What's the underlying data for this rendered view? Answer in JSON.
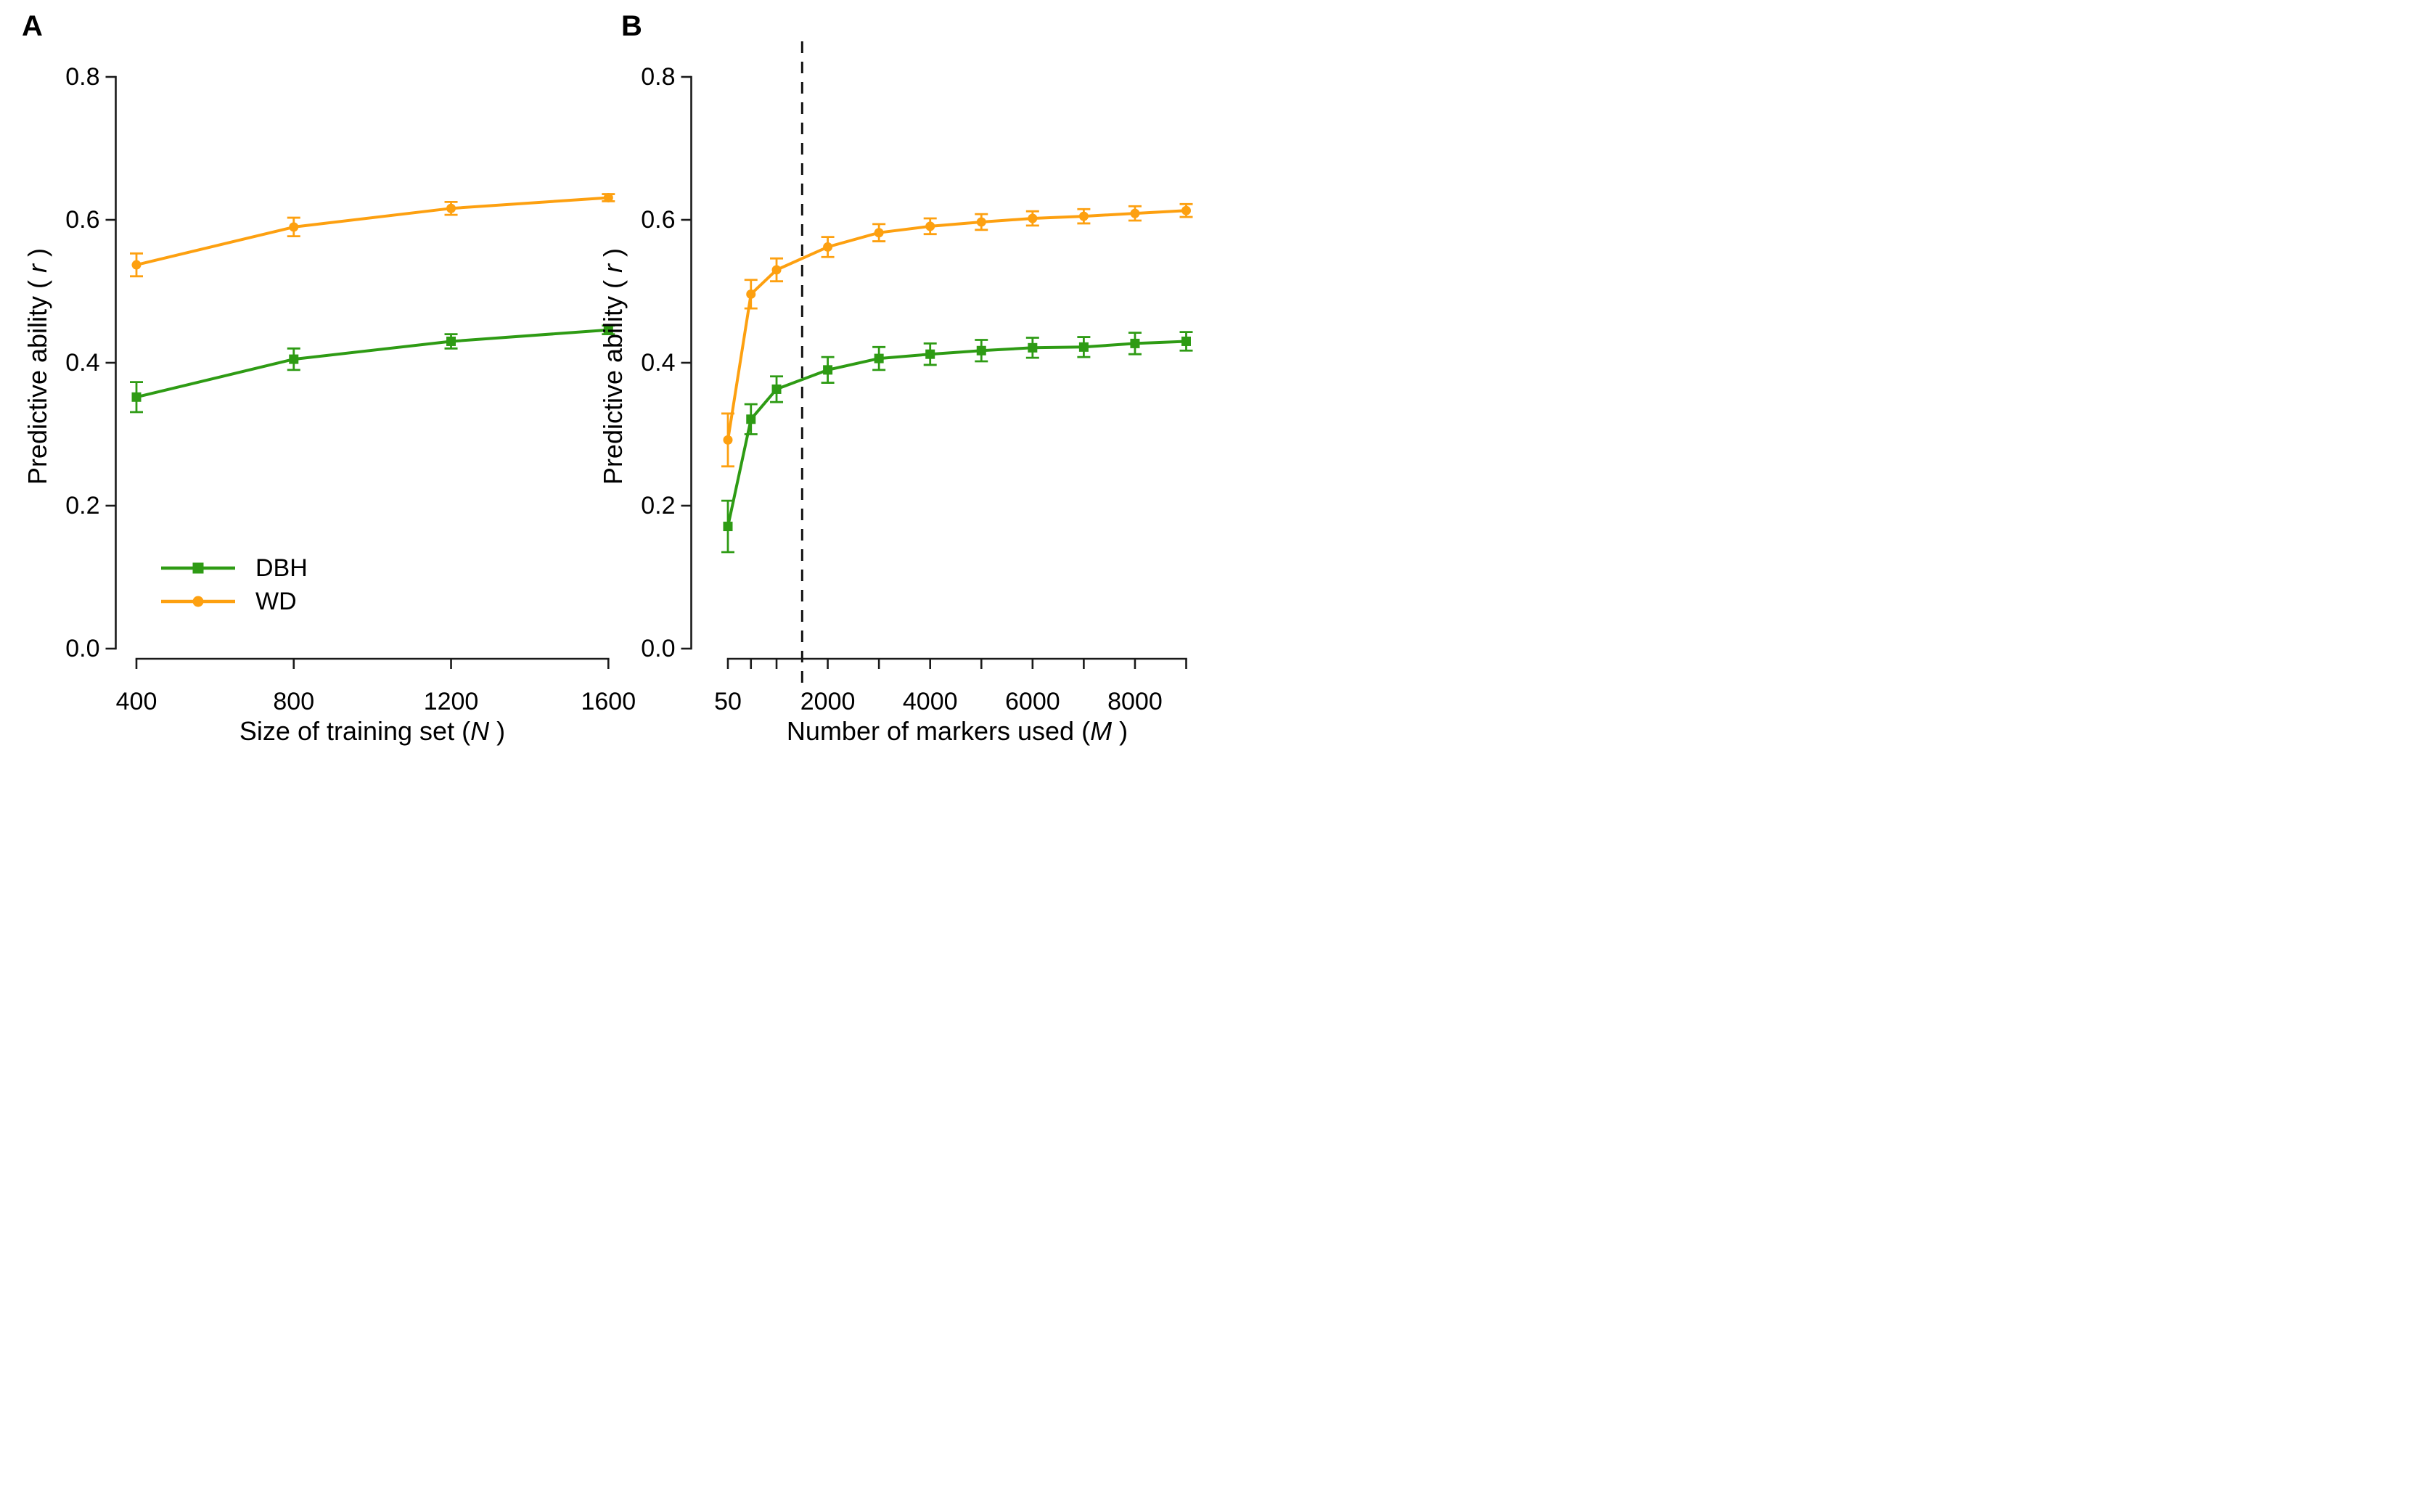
{
  "figure": {
    "background": "#ffffff",
    "text_color": "#000000",
    "axis_color": "#1a1a1a"
  },
  "chart_data": [
    {
      "type": "line",
      "panel_label": "A",
      "title": "",
      "xlabel": "Size of training set (N)",
      "xlabel_parts": {
        "prefix": "Size of training set (",
        "italic": "N",
        "suffix": " )"
      },
      "ylabel": "Predictive ability (r)",
      "ylabel_parts": {
        "prefix": "Predictive ability ( ",
        "italic": "r",
        "suffix": " )"
      },
      "xlim": [
        400,
        1600
      ],
      "ylim": [
        0.0,
        0.8
      ],
      "grid": false,
      "x_ticks": [
        400,
        800,
        1200,
        1600
      ],
      "x_tick_labels": [
        "400",
        "800",
        "1200",
        "1600"
      ],
      "y_ticks": [
        0.0,
        0.2,
        0.4,
        0.6,
        0.8
      ],
      "y_tick_labels": [
        "0.0",
        "0.2",
        "0.4",
        "0.6",
        "0.8"
      ],
      "legend_position": "lower-left-inside",
      "legend": {
        "items": [
          {
            "label": "DBH"
          },
          {
            "label": "WD"
          }
        ]
      },
      "series": [
        {
          "name": "DBH",
          "color": "#2e9b14",
          "marker": "square",
          "x": [
            400,
            800,
            1200,
            1600
          ],
          "y": [
            0.352,
            0.405,
            0.43,
            0.446
          ],
          "yerr": [
            0.021,
            0.015,
            0.01,
            0.006
          ]
        },
        {
          "name": "WD",
          "color": "#fda010",
          "marker": "circle",
          "x": [
            400,
            800,
            1200,
            1600
          ],
          "y": [
            0.537,
            0.59,
            0.616,
            0.631
          ],
          "yerr": [
            0.016,
            0.013,
            0.009,
            0.005
          ]
        }
      ]
    },
    {
      "type": "line",
      "panel_label": "B",
      "title": "",
      "xlabel": "Number of markers used (M)",
      "xlabel_parts": {
        "prefix": "Number of markers used (",
        "italic": "M",
        "suffix": " )"
      },
      "ylabel": "Predictive ability (r)",
      "ylabel_parts": {
        "prefix": "Predictive ability ( ",
        "italic": "r",
        "suffix": " )"
      },
      "xlim": [
        50,
        9000
      ],
      "ylim": [
        0.0,
        0.8
      ],
      "grid": false,
      "x_ticks": [
        50,
        500,
        1000,
        2000,
        3000,
        4000,
        5000,
        6000,
        7000,
        8000,
        9000
      ],
      "x_tick_labels": [
        "50",
        "",
        "",
        "2000",
        "",
        "4000",
        "",
        "6000",
        "",
        "8000",
        ""
      ],
      "y_ticks": [
        0.0,
        0.2,
        0.4,
        0.6,
        0.8
      ],
      "y_tick_labels": [
        "0.0",
        "0.2",
        "0.4",
        "0.6",
        "0.8"
      ],
      "vline": {
        "x": 1500,
        "style": "dashed",
        "color": "#111111"
      },
      "series": [
        {
          "name": "DBH",
          "color": "#2e9b14",
          "marker": "square",
          "x": [
            50,
            500,
            1000,
            2000,
            3000,
            4000,
            5000,
            6000,
            7000,
            8000,
            9000
          ],
          "y": [
            0.171,
            0.321,
            0.363,
            0.39,
            0.406,
            0.412,
            0.417,
            0.421,
            0.422,
            0.427,
            0.43
          ],
          "yerr": [
            0.036,
            0.021,
            0.018,
            0.018,
            0.016,
            0.015,
            0.015,
            0.014,
            0.014,
            0.015,
            0.013
          ]
        },
        {
          "name": "WD",
          "color": "#fda010",
          "marker": "circle",
          "x": [
            50,
            500,
            1000,
            2000,
            3000,
            4000,
            5000,
            6000,
            7000,
            8000,
            9000
          ],
          "y": [
            0.292,
            0.496,
            0.53,
            0.562,
            0.582,
            0.591,
            0.597,
            0.602,
            0.605,
            0.609,
            0.613
          ],
          "yerr": [
            0.037,
            0.02,
            0.016,
            0.014,
            0.012,
            0.011,
            0.011,
            0.01,
            0.01,
            0.01,
            0.009
          ]
        }
      ]
    }
  ]
}
